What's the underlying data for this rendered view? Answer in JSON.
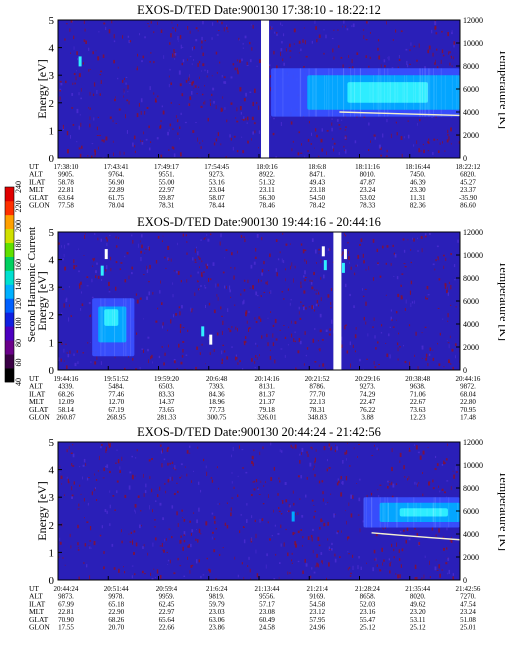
{
  "colorbar": {
    "label": "Second Harmonic Current",
    "ticks": [
      "40",
      "60",
      "80",
      "100",
      "120",
      "140",
      "160",
      "180",
      "200",
      "220",
      "240"
    ],
    "colors": [
      "#000000",
      "#3a0045",
      "#6a008a",
      "#4c00c0",
      "#1020e0",
      "#0060ff",
      "#00b0ff",
      "#00e0d0",
      "#00d060",
      "#60e000",
      "#d0e000",
      "#ffa000",
      "#ff3000",
      "#e00000"
    ]
  },
  "colors": {
    "background": "#2a1fb8",
    "noise": "#8a1030",
    "cold_band": "#3850ff",
    "mid_band": "#00aaff",
    "hot_band": "#30f0ff",
    "temperature_line": "#f5f0d0"
  },
  "chart_data": [
    {
      "type": "heatmap",
      "title": "EXOS-D/TED   Date:900130   17:38:10 - 18:22:12",
      "ylabel": "Energy [eV]",
      "y2label": "Temperature [K]",
      "ylim": [
        0,
        5
      ],
      "y2lim": [
        0,
        12000
      ],
      "yticks": [
        "0",
        "1",
        "2",
        "3",
        "4",
        "5"
      ],
      "y2ticks": [
        "0",
        "2000",
        "4000",
        "6000",
        "8000",
        "10000",
        "12000"
      ],
      "gaps": [
        [
          0.505,
          0.525
        ]
      ],
      "bands": [
        {
          "x0": 0.53,
          "x1": 1.0,
          "y0": 1.5,
          "y1": 3.25,
          "level": "cold"
        },
        {
          "x0": 0.62,
          "x1": 1.0,
          "y0": 1.75,
          "y1": 3.0,
          "level": "mid"
        },
        {
          "x0": 0.72,
          "x1": 0.92,
          "y0": 2.0,
          "y1": 2.75,
          "level": "hot"
        }
      ],
      "spots": [
        {
          "x": 0.055,
          "y": 3.5,
          "level": "hot"
        }
      ],
      "temperature_line": {
        "x": [
          0.7,
          0.8,
          0.9,
          1.0
        ],
        "y": [
          4000,
          3900,
          3800,
          3700
        ]
      },
      "table_labels": [
        "UT",
        "ALT",
        "ILAT",
        "MLT",
        "GLAT",
        "GLON"
      ],
      "table_columns": [
        [
          "17:38:10",
          "9905.",
          "58.78",
          "22.81",
          "63.64",
          "77.58"
        ],
        [
          "17:43:41",
          "9764.",
          "56.90",
          "22.89",
          "61.75",
          "78.04"
        ],
        [
          "17:49:17",
          "9551.",
          "55.00",
          "22.97",
          "59.87",
          "78.31"
        ],
        [
          "17:54:45",
          "9273.",
          "53.16",
          "23.04",
          "58.07",
          "78.44"
        ],
        [
          "18:0:16",
          "8922.",
          "51.32",
          "23.11",
          "56.30",
          "78.46"
        ],
        [
          "18:6:8",
          "8471.",
          "49.43",
          "23.18",
          "54.50",
          "78.42"
        ],
        [
          "18:11:16",
          "8010.",
          "47.87",
          "23.24",
          "53.02",
          "78.33"
        ],
        [
          "18:16:44",
          "7450.",
          "46.39",
          "23.30",
          "11.31",
          "82.36"
        ],
        [
          "18:22:12",
          "6820.",
          "45.27",
          "23.37",
          "-35.90",
          "86.60"
        ]
      ]
    },
    {
      "type": "heatmap",
      "title": "EXOS-D/TED   Date:900130   19:44:16 - 20:44:16",
      "ylabel": "Energy [eV]",
      "y2label": "Temperature [K]",
      "ylim": [
        0,
        5
      ],
      "y2lim": [
        0,
        12000
      ],
      "yticks": [
        "0",
        "1",
        "2",
        "3",
        "4",
        "5"
      ],
      "y2ticks": [
        "0",
        "2000",
        "4000",
        "6000",
        "8000",
        "10000",
        "12000"
      ],
      "gaps": [
        [
          0.685,
          0.705
        ]
      ],
      "bands": [
        {
          "x0": 0.085,
          "x1": 0.19,
          "y0": 0.5,
          "y1": 2.6,
          "level": "cold"
        },
        {
          "x0": 0.1,
          "x1": 0.17,
          "y0": 1.0,
          "y1": 2.3,
          "level": "mid"
        },
        {
          "x0": 0.115,
          "x1": 0.15,
          "y0": 1.6,
          "y1": 2.2,
          "level": "hot"
        }
      ],
      "spots": [
        {
          "x": 0.66,
          "y": 4.3,
          "level": "white"
        },
        {
          "x": 0.665,
          "y": 3.8,
          "level": "hot"
        },
        {
          "x": 0.715,
          "y": 4.2,
          "level": "white"
        },
        {
          "x": 0.71,
          "y": 3.7,
          "level": "hot"
        },
        {
          "x": 0.38,
          "y": 1.1,
          "level": "white"
        },
        {
          "x": 0.36,
          "y": 1.4,
          "level": "hot"
        },
        {
          "x": 0.12,
          "y": 4.2,
          "level": "white"
        },
        {
          "x": 0.11,
          "y": 3.6,
          "level": "hot"
        }
      ],
      "temperature_line": null,
      "table_labels": [
        "UT",
        "ALT",
        "ILAT",
        "MLT",
        "GLAT",
        "GLON"
      ],
      "table_columns": [
        [
          "19:44:16",
          "4339.",
          "68.26",
          "12.09",
          "58.14",
          "260.87"
        ],
        [
          "19:51:52",
          "5484.",
          "77.46",
          "12.70",
          "67.19",
          "268.95"
        ],
        [
          "19:59:20",
          "6503.",
          "83.33",
          "14.37",
          "73.65",
          "281.33"
        ],
        [
          "20:6:48",
          "7393.",
          "84.36",
          "18.96",
          "77.73",
          "300.75"
        ],
        [
          "20:14:16",
          "8131.",
          "81.37",
          "21.37",
          "79.18",
          "326.01"
        ],
        [
          "20:21:52",
          "8786.",
          "77.70",
          "22.13",
          "78.31",
          "348.83"
        ],
        [
          "20:29:16",
          "9273.",
          "74.29",
          "22.47",
          "76.22",
          "3.88"
        ],
        [
          "20:38:48",
          "9638.",
          "71.06",
          "22.67",
          "73.63",
          "12.23"
        ],
        [
          "20:44:16",
          "9872.",
          "68.04",
          "22.80",
          "70.95",
          "17.48"
        ]
      ]
    },
    {
      "type": "heatmap",
      "title": "EXOS-D/TED   Date:900130   20:44:24 - 21:42:56",
      "ylabel": "Energy [eV]",
      "y2label": "Temperature [K]",
      "ylim": [
        0,
        5
      ],
      "y2lim": [
        0,
        12000
      ],
      "yticks": [
        "0",
        "1",
        "2",
        "3",
        "4",
        "5"
      ],
      "y2ticks": [
        "0",
        "2000",
        "4000",
        "6000",
        "8000",
        "10000",
        "12000"
      ],
      "gaps": [],
      "bands": [
        {
          "x0": 0.76,
          "x1": 1.0,
          "y0": 1.9,
          "y1": 3.0,
          "level": "cold"
        },
        {
          "x0": 0.8,
          "x1": 1.0,
          "y0": 2.1,
          "y1": 2.8,
          "level": "mid"
        },
        {
          "x0": 0.85,
          "x1": 0.97,
          "y0": 2.3,
          "y1": 2.6,
          "level": "hot"
        }
      ],
      "spots": [
        {
          "x": 0.585,
          "y": 2.3,
          "level": "mid"
        }
      ],
      "temperature_line": {
        "x": [
          0.78,
          0.85,
          0.92,
          1.0
        ],
        "y": [
          4100,
          3900,
          3700,
          3500
        ]
      },
      "table_labels": [
        "UT",
        "ALT",
        "ILAT",
        "MLT",
        "GLAT",
        "GLON"
      ],
      "table_columns": [
        [
          "20:44:24",
          "9873.",
          "67.99",
          "22.81",
          "70.90",
          "17.55"
        ],
        [
          "20:51:44",
          "9978.",
          "65.18",
          "22.90",
          "68.26",
          "20.70"
        ],
        [
          "20:59:4",
          "9959.",
          "62.45",
          "22.97",
          "65.64",
          "22.66"
        ],
        [
          "21:6:24",
          "9819.",
          "59.79",
          "23.03",
          "63.06",
          "23.86"
        ],
        [
          "21:13:44",
          "9556.",
          "57.17",
          "23.08",
          "60.49",
          "24.58"
        ],
        [
          "21:21:4",
          "9169.",
          "54.58",
          "23.12",
          "57.95",
          "24.96"
        ],
        [
          "21:28:24",
          "8658.",
          "52.03",
          "23.16",
          "55.47",
          "25.12"
        ],
        [
          "21:35:44",
          "8020.",
          "49.62",
          "23.20",
          "53.11",
          "25.12"
        ],
        [
          "21:42:56",
          "7270.",
          "47.54",
          "23.24",
          "51.08",
          "25.01"
        ]
      ]
    }
  ]
}
